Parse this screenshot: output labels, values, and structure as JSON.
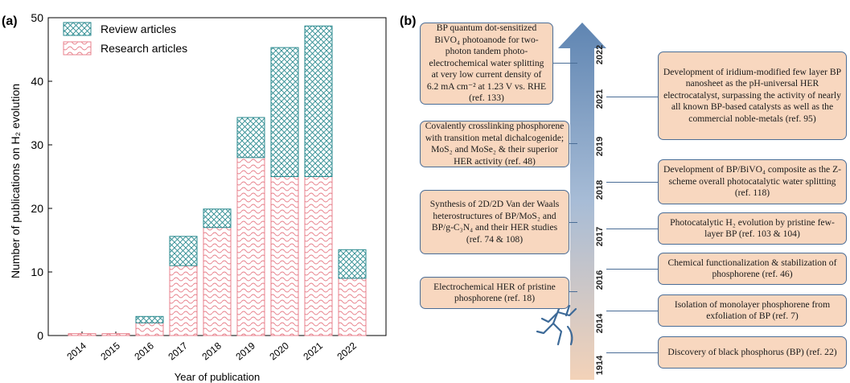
{
  "panel_a_label": "(a)",
  "panel_b_label": "(b)",
  "colors": {
    "review": "#2a8a8f",
    "research": "#e8828d",
    "arrow_top": "#6f8fb5",
    "arrow_bottom": "#f3d2b8",
    "box_fill": "#f8d7bf",
    "box_border": "#4a6d96"
  },
  "chart_data": {
    "type": "bar",
    "stacked": true,
    "categories": [
      "2014",
      "2015",
      "2016",
      "2017",
      "2018",
      "2019",
      "2020",
      "2021",
      "2022"
    ],
    "series": [
      {
        "name": "Research articles",
        "values": [
          0.3,
          0.3,
          2,
          11,
          17,
          28,
          25,
          25,
          9
        ],
        "pattern": "wave"
      },
      {
        "name": "Review articles",
        "values": [
          0,
          0,
          1,
          4.6,
          2.9,
          6.3,
          20.3,
          23.7,
          4.5
        ],
        "pattern": "crosshatch"
      }
    ],
    "xlabel": "Year of publication",
    "ylabel": "Number of publications on H₂ evolution",
    "ylim": [
      0,
      50
    ],
    "yticks": [
      "0",
      "10",
      "20",
      "30",
      "40",
      "50"
    ],
    "legend_position": "top-left"
  },
  "timeline": {
    "years": [
      {
        "label": "2022"
      },
      {
        "label": "2021"
      },
      {
        "label": "2019"
      },
      {
        "label": "2018"
      },
      {
        "label": "2017"
      },
      {
        "label": "2016"
      },
      {
        "label": "2014"
      },
      {
        "label": "1914"
      }
    ],
    "left_boxes": [
      {
        "text": "BP quantum dot-sensitized BiVO₄ photoanode for two-photon tandem photo-electrochemical water splitting at very low current density of 6.2 mA cm⁻² at 1.23 V vs. RHE (ref. 133)"
      },
      {
        "text": "Covalently crosslinking phosphorene with transition metal dichalcogenide; MoS₂ and MoSe₂ & their superior HER activity (ref. 48)"
      },
      {
        "text": "Synthesis of 2D/2D Van der Waals heterostructures of BP/MoS₂ and BP/g-C₃N₄ and their HER studies (ref. 74 & 108)"
      },
      {
        "text": "Electrochemical HER of pristine phosphorene (ref. 18)"
      }
    ],
    "right_boxes": [
      {
        "text": "Development of iridium-modified few layer BP nanosheet as the pH-universal HER electrocatalyst, surpassing the activity of nearly all known BP-based catalysts as well as the commercial noble-metals (ref. 95)"
      },
      {
        "text": "Development of BP/BiVO₄ composite as the Z-scheme overall photocatalytic water splitting (ref. 118)"
      },
      {
        "text": "Photocatalytic H₂ evolution by pristine few-layer BP (ref. 103 & 104)"
      },
      {
        "text": "Chemical functionalization & stabilization of phosphorene (ref. 46)"
      },
      {
        "text": "Isolation of monolayer phosphorene from exfoliation of BP (ref. 7)"
      },
      {
        "text": "Discovery of black phosphorus (BP) (ref. 22)"
      }
    ]
  }
}
